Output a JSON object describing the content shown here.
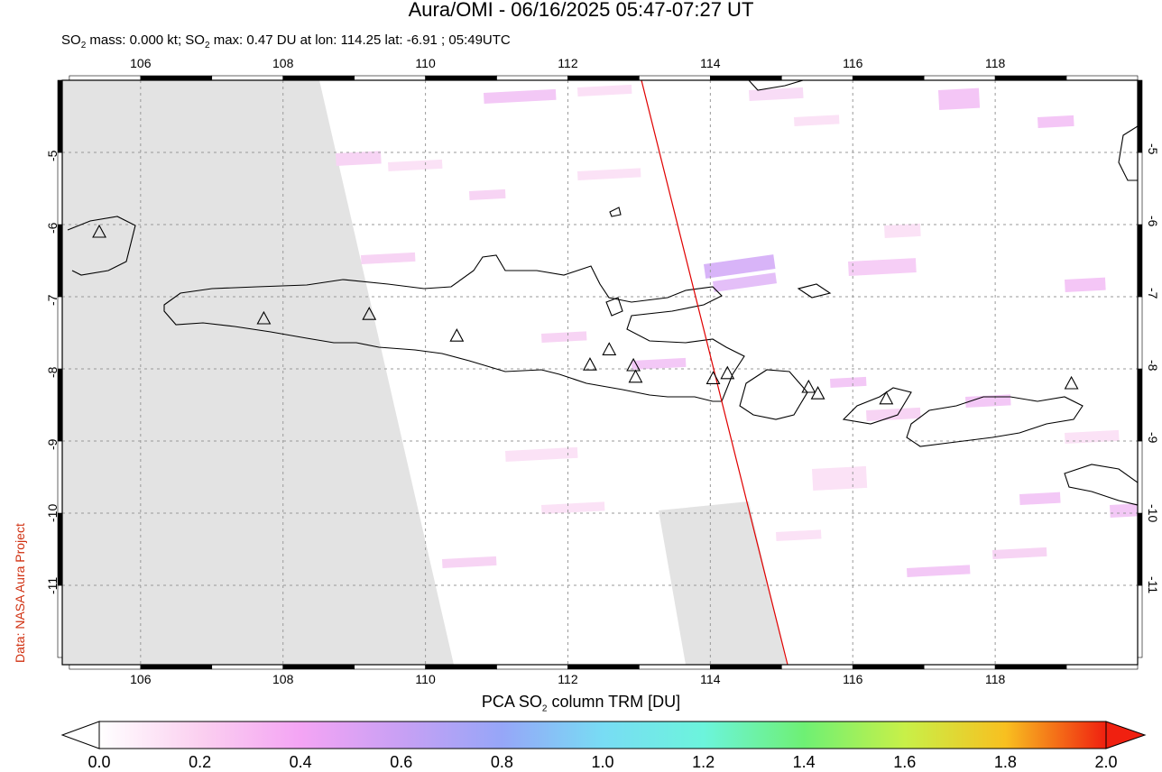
{
  "title": "Aura/OMI - 06/16/2025 05:47-07:27 UT",
  "subtitle": {
    "prefix": "SO",
    "sub": "2",
    "middle": " mass: 0.000 kt; SO",
    "sub2": "2",
    "suffix": " max: 0.47 DU at lon: 114.25 lat: -6.91 ; 05:49UTC"
  },
  "credit": "Data: NASA Aura Project",
  "map": {
    "lon_range": [
      104.9,
      120.0
    ],
    "lat_range": [
      -12.1,
      -4.0
    ],
    "lon_ticks": [
      "106",
      "108",
      "110",
      "112",
      "114",
      "116",
      "118"
    ],
    "lat_ticks": [
      "-5",
      "-6",
      "-7",
      "-8",
      "-9",
      "-10",
      "-11"
    ],
    "grid": "dashed",
    "no_data_color": "#e3e3e3",
    "orbit_track_color": "#e00000",
    "coastline_color": "#000000",
    "volcano_marker": "open-triangle"
  },
  "colorbar": {
    "title_prefix": "PCA SO",
    "title_sub": "2",
    "title_suffix": " column TRM [DU]",
    "labels": [
      "0.0",
      "0.2",
      "0.4",
      "0.6",
      "0.8",
      "1.0",
      "1.2",
      "1.4",
      "1.6",
      "1.8",
      "2.0"
    ],
    "colors": [
      "#ffffff",
      "#fbd0f0",
      "#f4a4f4",
      "#c8a0f4",
      "#96a6f8",
      "#78dcf4",
      "#6cf4dc",
      "#6ef074",
      "#c8f048",
      "#f8c020",
      "#f02010"
    ]
  }
}
